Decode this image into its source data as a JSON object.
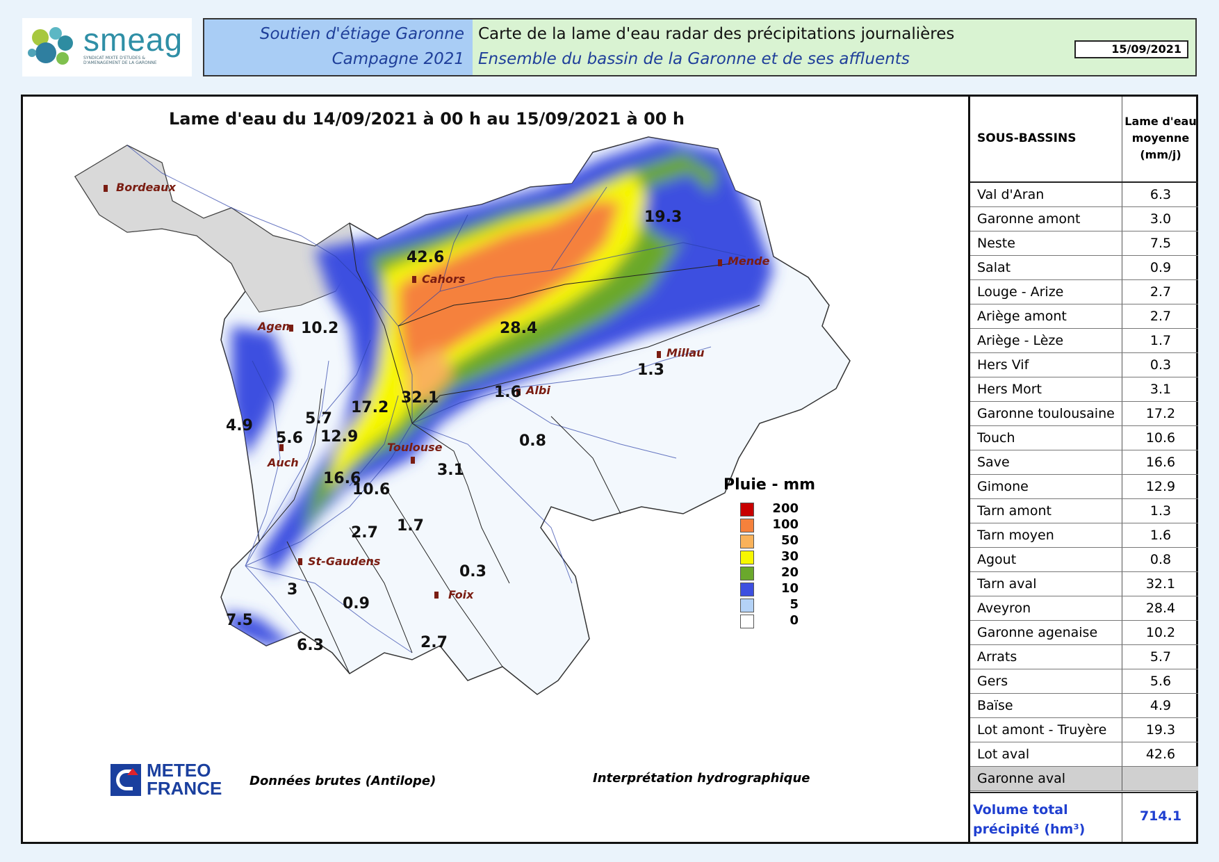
{
  "logo": {
    "name": "smeag",
    "subtitle": "SYNDICAT MIXTE D'ETUDES & D'AMENAGEMENT DE LA GARONNE"
  },
  "header": {
    "left_line1": "Soutien d'étiage Garonne",
    "left_line2": "Campagne 2021",
    "right_line1": "Carte de la lame d'eau radar des précipitations journalières",
    "right_line2": "Ensemble du bassin de la Garonne et de ses affluents",
    "date": "15/09/2021"
  },
  "map": {
    "title": "Lame d'eau du 14/09/2021 à 00 h au 15/09/2021 à 00 h",
    "cities": [
      "Bordeaux",
      "Agen",
      "Cahors",
      "Mende",
      "Millau",
      "Albi",
      "Toulouse",
      "Auch",
      "St-Gaudens",
      "Foix"
    ],
    "basin_values": {
      "lot_aval": "42.6",
      "lot_amont": "19.3",
      "aveyron": "28.4",
      "garonne_agenaise": "10.2",
      "tarn_aval": "32.1",
      "tarn_moyen": "1.6",
      "tarn_amont": "1.3",
      "agout": "0.8",
      "garonne_toulousaine": "17.2",
      "arrats": "5.7",
      "baise": "4.9",
      "gers": "5.6",
      "gimone": "12.9",
      "save": "16.6",
      "touch": "10.6",
      "hers_mort": "3.1",
      "louge_arize": "2.7",
      "ariege_leze": "1.7",
      "hers_vif": "0.3",
      "garonne_amont": "3",
      "salat": "0.9",
      "neste": "7.5",
      "val_daran": "6.3",
      "ariege_amont": "2.7"
    },
    "footer_left": "Données brutes (Antilope)",
    "footer_right": "Interprétation hydrographique",
    "provider_line1": "METEO",
    "provider_line2": "FRANCE"
  },
  "legend": {
    "title": "Pluie - mm",
    "items": [
      {
        "label": "200",
        "color": "#c80000"
      },
      {
        "label": "100",
        "color": "#f5813c"
      },
      {
        "label": "50",
        "color": "#f9b25a"
      },
      {
        "label": "30",
        "color": "#f7f700"
      },
      {
        "label": "20",
        "color": "#6aa82c"
      },
      {
        "label": "10",
        "color": "#3d4fe0"
      },
      {
        "label": "5",
        "color": "#b4d2f6"
      },
      {
        "label": "0",
        "color": "#ffffff"
      }
    ]
  },
  "table": {
    "header_col1": "SOUS-BASSINS",
    "header_col2": "Lame d'eau moyenne (mm/j)",
    "rows": [
      {
        "name": "Val d'Aran",
        "value": "6.3"
      },
      {
        "name": "Garonne amont",
        "value": "3.0"
      },
      {
        "name": "Neste",
        "value": "7.5"
      },
      {
        "name": "Salat",
        "value": "0.9"
      },
      {
        "name": "Louge - Arize",
        "value": "2.7"
      },
      {
        "name": "Ariège amont",
        "value": "2.7"
      },
      {
        "name": "Ariège - Lèze",
        "value": "1.7"
      },
      {
        "name": "Hers Vif",
        "value": "0.3"
      },
      {
        "name": "Hers Mort",
        "value": "3.1"
      },
      {
        "name": "Garonne toulousaine",
        "value": "17.2"
      },
      {
        "name": "Touch",
        "value": "10.6"
      },
      {
        "name": "Save",
        "value": "16.6"
      },
      {
        "name": "Gimone",
        "value": "12.9"
      },
      {
        "name": "Tarn amont",
        "value": "1.3"
      },
      {
        "name": "Tarn moyen",
        "value": "1.6"
      },
      {
        "name": "Agout",
        "value": "0.8"
      },
      {
        "name": "Tarn aval",
        "value": "32.1"
      },
      {
        "name": "Aveyron",
        "value": "28.4"
      },
      {
        "name": "Garonne agenaise",
        "value": "10.2"
      },
      {
        "name": "Arrats",
        "value": "5.7"
      },
      {
        "name": "Gers",
        "value": "5.6"
      },
      {
        "name": "Baïse",
        "value": "4.9"
      },
      {
        "name": "Lot amont - Truyère",
        "value": "19.3"
      },
      {
        "name": "Lot aval",
        "value": "42.6"
      },
      {
        "name": "Garonne aval",
        "value": ""
      }
    ],
    "total_label": "Volume total précipité (hm³)",
    "total_value": "714.1"
  }
}
